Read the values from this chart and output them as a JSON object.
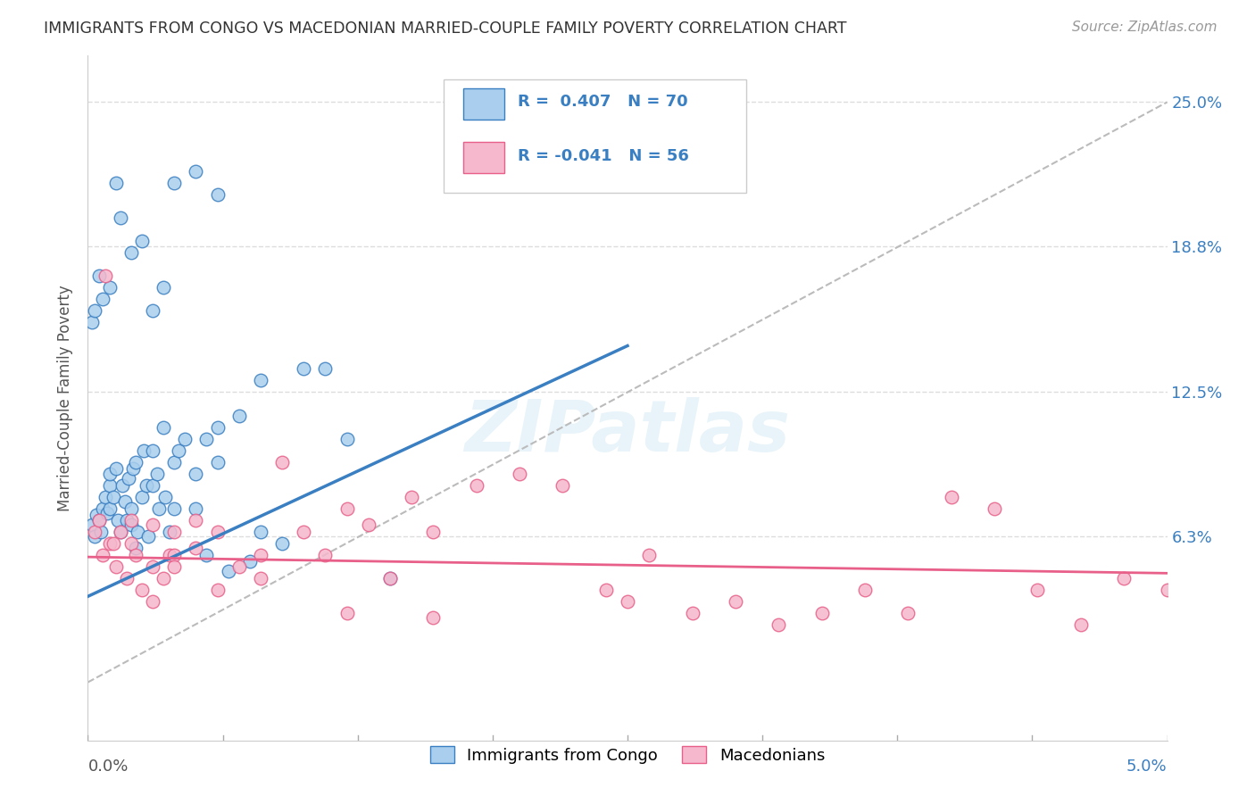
{
  "title": "IMMIGRANTS FROM CONGO VS MACEDONIAN MARRIED-COUPLE FAMILY POVERTY CORRELATION CHART",
  "source": "Source: ZipAtlas.com",
  "ylabel": "Married-Couple Family Poverty",
  "xmin": 0.0,
  "xmax": 0.05,
  "ymin": -0.025,
  "ymax": 0.27,
  "congo_R": 0.407,
  "congo_N": 70,
  "mace_R": -0.041,
  "mace_N": 56,
  "congo_color": "#aacfee",
  "mace_color": "#f5b8cc",
  "congo_line_color": "#3a7fc1",
  "mace_line_color": "#e8608a",
  "ref_line_color": "#bbbbbb",
  "background_color": "#ffffff",
  "grid_color": "#dddddd",
  "watermark": "ZIPatlas",
  "ytick_vals": [
    0.063,
    0.125,
    0.188,
    0.25
  ],
  "ytick_labels": [
    "6.3%",
    "12.5%",
    "18.8%",
    "25.0%"
  ],
  "congo_line_x0": 0.0,
  "congo_line_y0": 0.037,
  "congo_line_x1": 0.025,
  "congo_line_y1": 0.145,
  "mace_line_x0": 0.0,
  "mace_line_y0": 0.054,
  "mace_line_x1": 0.05,
  "mace_line_y1": 0.047,
  "ref_line_x0": 0.0,
  "ref_line_y0": 0.0,
  "ref_line_x1": 0.05,
  "ref_line_y1": 0.25,
  "congo_x": [
    0.0002,
    0.0003,
    0.0004,
    0.0005,
    0.0006,
    0.0007,
    0.0008,
    0.0009,
    0.001,
    0.001,
    0.001,
    0.0012,
    0.0013,
    0.0014,
    0.0015,
    0.0016,
    0.0017,
    0.0018,
    0.0019,
    0.002,
    0.002,
    0.0021,
    0.0022,
    0.0023,
    0.0025,
    0.0026,
    0.0027,
    0.003,
    0.003,
    0.0032,
    0.0033,
    0.0035,
    0.0036,
    0.0038,
    0.004,
    0.004,
    0.0042,
    0.0045,
    0.005,
    0.005,
    0.0055,
    0.006,
    0.006,
    0.007,
    0.008,
    0.0002,
    0.0003,
    0.0005,
    0.0007,
    0.001,
    0.0013,
    0.0015,
    0.002,
    0.0025,
    0.003,
    0.0035,
    0.004,
    0.005,
    0.006,
    0.008,
    0.01,
    0.012,
    0.014,
    0.0022,
    0.0028,
    0.0055,
    0.0065,
    0.0075,
    0.009,
    0.011
  ],
  "congo_y": [
    0.068,
    0.063,
    0.072,
    0.07,
    0.065,
    0.075,
    0.08,
    0.073,
    0.085,
    0.075,
    0.09,
    0.08,
    0.092,
    0.07,
    0.065,
    0.085,
    0.078,
    0.07,
    0.088,
    0.075,
    0.068,
    0.092,
    0.095,
    0.065,
    0.08,
    0.1,
    0.085,
    0.1,
    0.085,
    0.09,
    0.075,
    0.11,
    0.08,
    0.065,
    0.095,
    0.075,
    0.1,
    0.105,
    0.09,
    0.075,
    0.105,
    0.11,
    0.095,
    0.115,
    0.065,
    0.155,
    0.16,
    0.175,
    0.165,
    0.17,
    0.215,
    0.2,
    0.185,
    0.19,
    0.16,
    0.17,
    0.215,
    0.22,
    0.21,
    0.13,
    0.135,
    0.105,
    0.045,
    0.058,
    0.063,
    0.055,
    0.048,
    0.052,
    0.06,
    0.135
  ],
  "mace_x": [
    0.0003,
    0.0005,
    0.0007,
    0.001,
    0.0013,
    0.0015,
    0.0018,
    0.002,
    0.0022,
    0.0025,
    0.003,
    0.003,
    0.0035,
    0.0038,
    0.004,
    0.004,
    0.005,
    0.005,
    0.006,
    0.007,
    0.008,
    0.009,
    0.01,
    0.011,
    0.012,
    0.013,
    0.014,
    0.015,
    0.016,
    0.018,
    0.02,
    0.022,
    0.024,
    0.026,
    0.028,
    0.03,
    0.032,
    0.034,
    0.036,
    0.038,
    0.04,
    0.042,
    0.044,
    0.046,
    0.048,
    0.05,
    0.0008,
    0.0012,
    0.002,
    0.003,
    0.004,
    0.006,
    0.008,
    0.012,
    0.016,
    0.025
  ],
  "mace_y": [
    0.065,
    0.07,
    0.055,
    0.06,
    0.05,
    0.065,
    0.045,
    0.06,
    0.055,
    0.04,
    0.068,
    0.05,
    0.045,
    0.055,
    0.065,
    0.055,
    0.07,
    0.058,
    0.065,
    0.05,
    0.045,
    0.095,
    0.065,
    0.055,
    0.075,
    0.068,
    0.045,
    0.08,
    0.065,
    0.085,
    0.09,
    0.085,
    0.04,
    0.055,
    0.03,
    0.035,
    0.025,
    0.03,
    0.04,
    0.03,
    0.08,
    0.075,
    0.04,
    0.025,
    0.045,
    0.04,
    0.175,
    0.06,
    0.07,
    0.035,
    0.05,
    0.04,
    0.055,
    0.03,
    0.028,
    0.035
  ]
}
